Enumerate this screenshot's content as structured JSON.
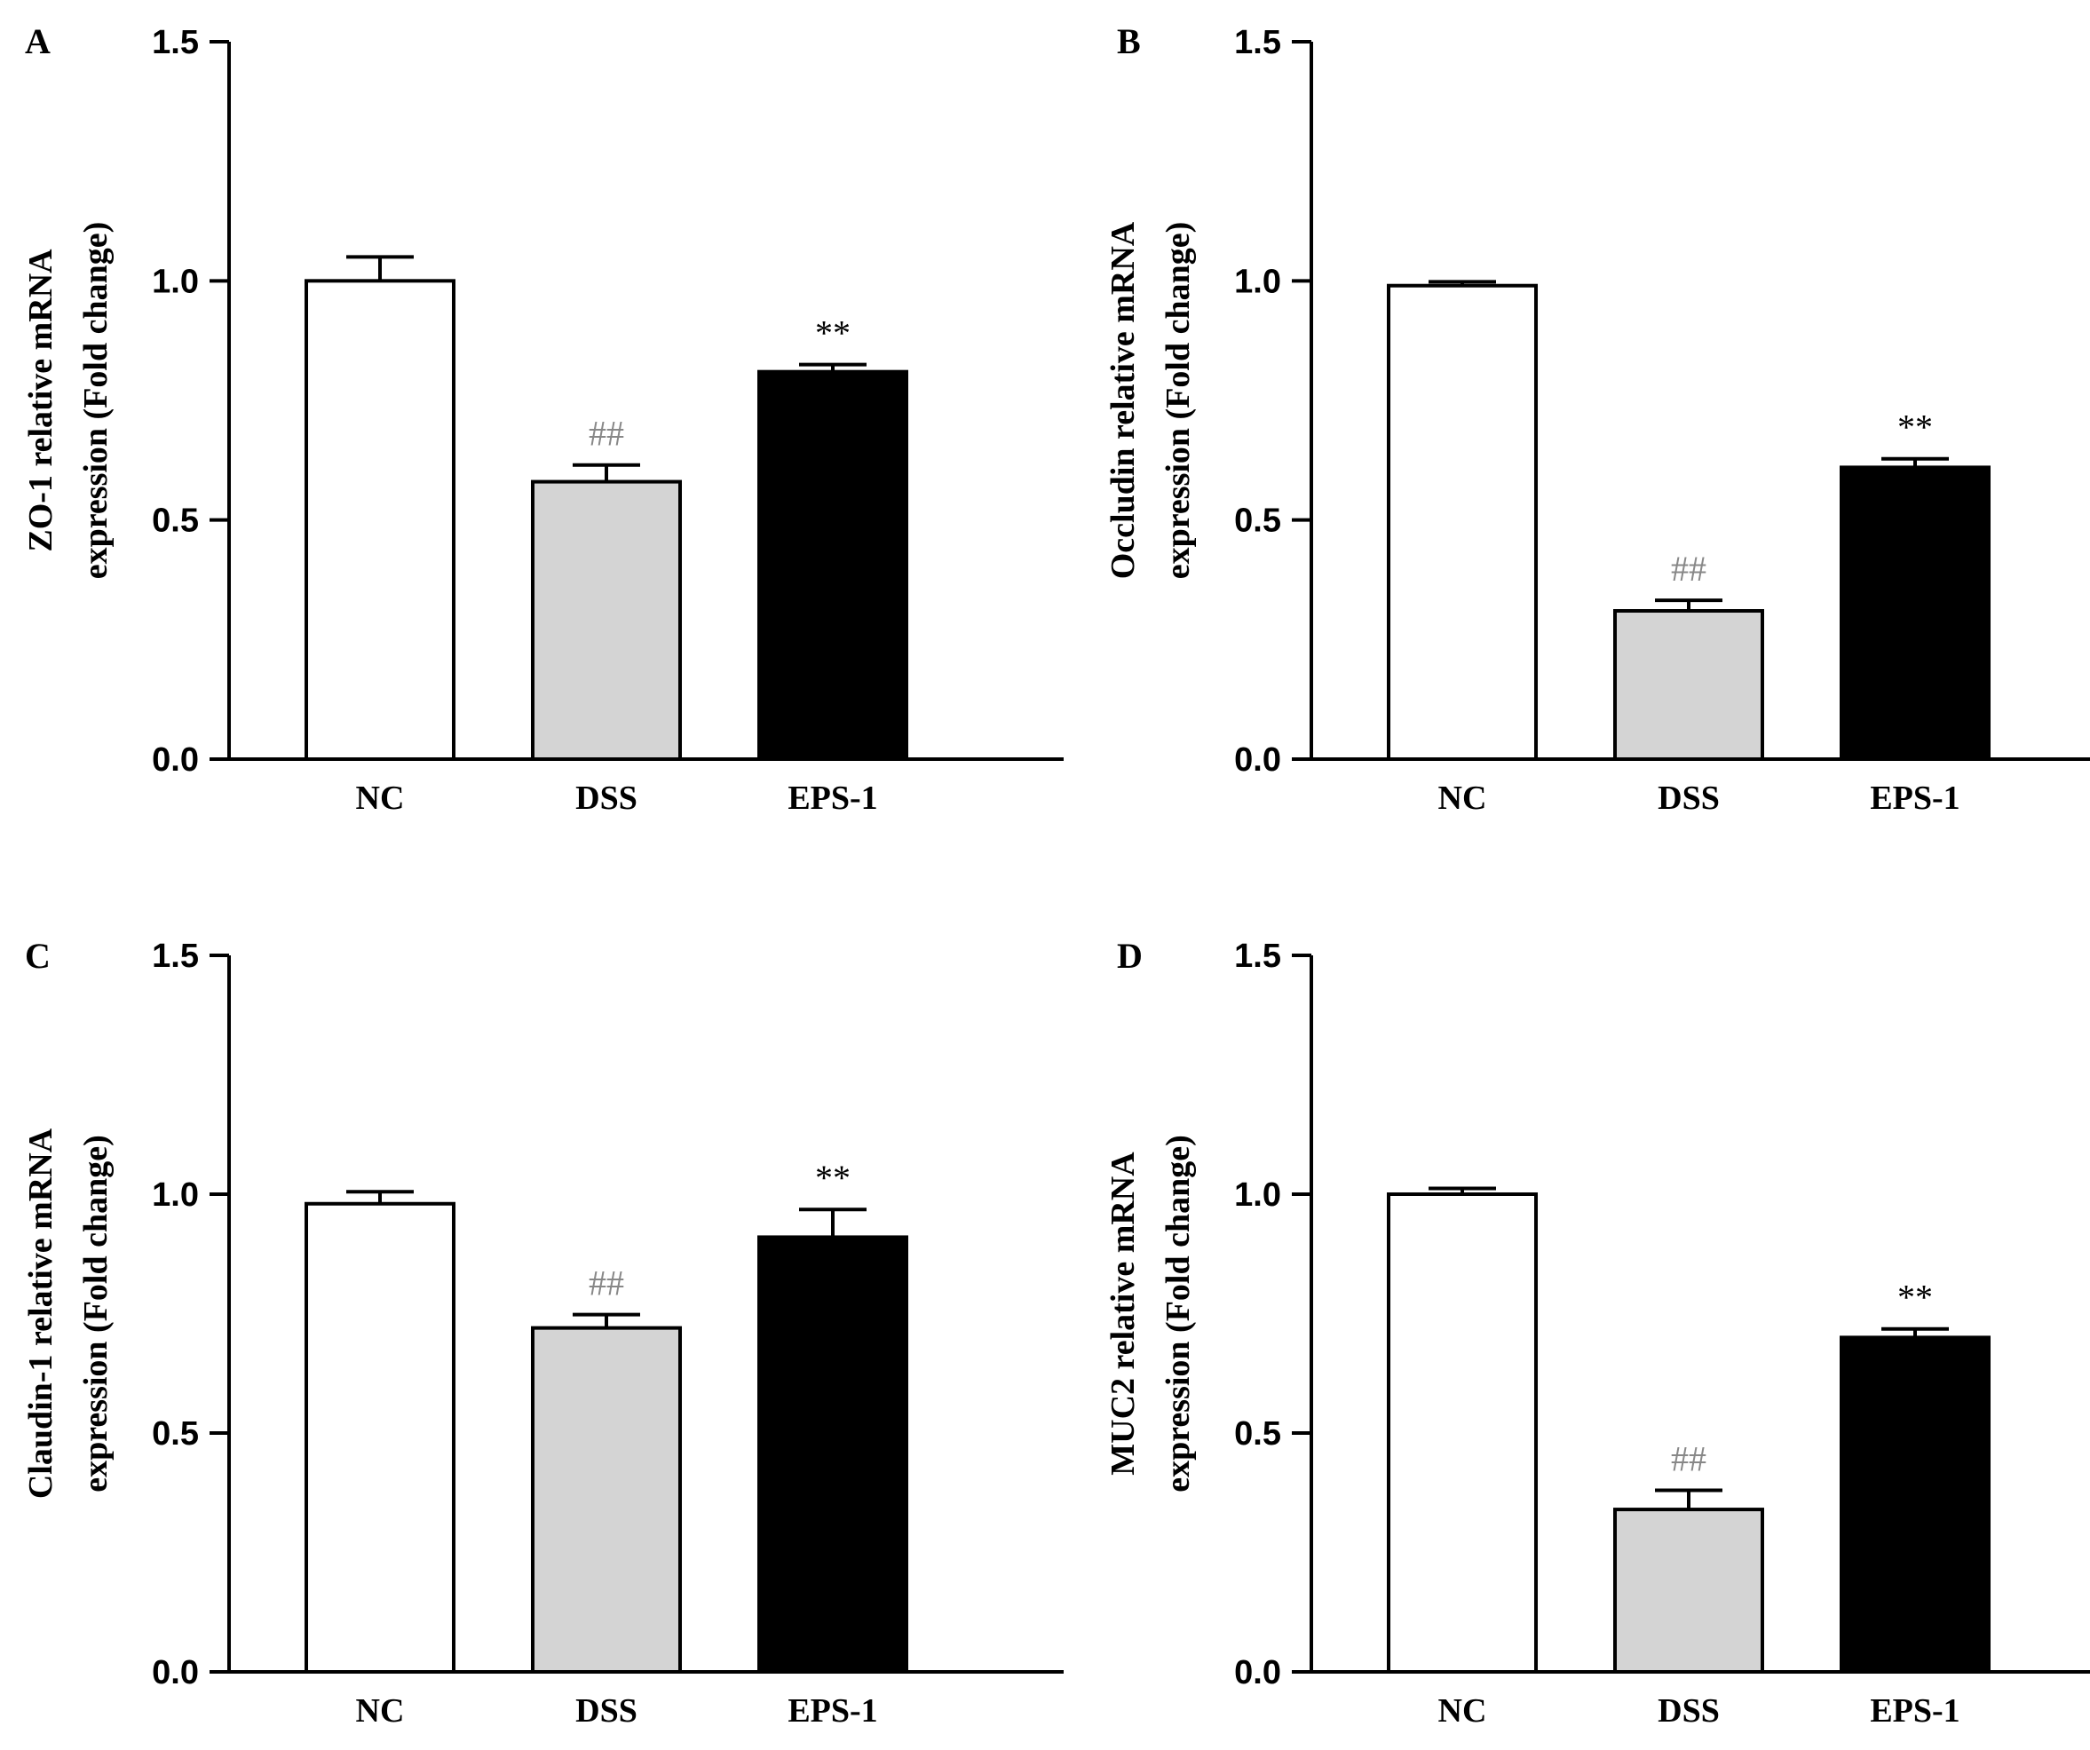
{
  "chart_data": [
    {
      "type": "bar",
      "panel": "A",
      "categories": [
        "NC",
        "DSS",
        "EPS-1"
      ],
      "values": [
        1.0,
        0.58,
        0.81
      ],
      "errors": [
        0.05,
        0.035,
        0.015
      ],
      "annotations": [
        "",
        "##",
        "**"
      ],
      "ylabel": [
        "ZO-1 relative mRNA",
        "expression (Fold change)"
      ],
      "ylim": [
        0.0,
        1.5
      ],
      "yticks": [
        "0.0",
        "0.5",
        "1.0",
        "1.5"
      ],
      "bar_colors": [
        "#ffffff",
        "#d4d4d4",
        "#000000"
      ]
    },
    {
      "type": "bar",
      "panel": "B",
      "categories": [
        "NC",
        "DSS",
        "EPS-1"
      ],
      "values": [
        0.99,
        0.31,
        0.61
      ],
      "errors": [
        0.008,
        0.022,
        0.018
      ],
      "annotations": [
        "",
        "##",
        "**"
      ],
      "ylabel": [
        "Occludin relative mRNA",
        "expression (Fold change)"
      ],
      "ylim": [
        0.0,
        1.5
      ],
      "yticks": [
        "0.0",
        "0.5",
        "1.0",
        "1.5"
      ],
      "bar_colors": [
        "#ffffff",
        "#d4d4d4",
        "#000000"
      ]
    },
    {
      "type": "bar",
      "panel": "C",
      "categories": [
        "NC",
        "DSS",
        "EPS-1"
      ],
      "values": [
        0.98,
        0.72,
        0.91
      ],
      "errors": [
        0.025,
        0.028,
        0.058
      ],
      "annotations": [
        "",
        "##",
        "**"
      ],
      "ylabel": [
        "Claudin-1 relative mRNA",
        "expression (Fold change)"
      ],
      "ylim": [
        0.0,
        1.5
      ],
      "yticks": [
        "0.0",
        "0.5",
        "1.0",
        "1.5"
      ],
      "bar_colors": [
        "#ffffff",
        "#d4d4d4",
        "#000000"
      ]
    },
    {
      "type": "bar",
      "panel": "D",
      "categories": [
        "NC",
        "DSS",
        "EPS-1"
      ],
      "values": [
        1.0,
        0.34,
        0.7
      ],
      "errors": [
        0.012,
        0.04,
        0.018
      ],
      "annotations": [
        "",
        "##",
        "**"
      ],
      "ylabel": [
        "MUC2 relative mRNA",
        "expression (Fold change)"
      ],
      "ylim": [
        0.0,
        1.5
      ],
      "yticks": [
        "0.0",
        "0.5",
        "1.0",
        "1.5"
      ],
      "bar_colors": [
        "#ffffff",
        "#d4d4d4",
        "#000000"
      ]
    }
  ]
}
